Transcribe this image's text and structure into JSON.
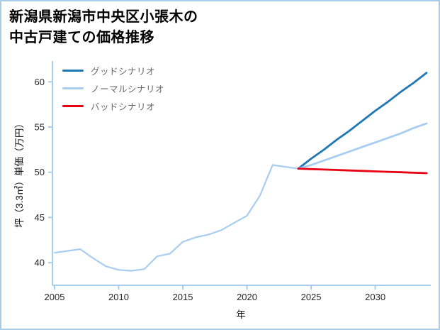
{
  "title": {
    "line1": "新潟県新潟市中央区小張木の",
    "line2": "中古戸建ての価格推移"
  },
  "chart_data": {
    "type": "line",
    "title": "新潟県新潟市中央区小張木の中古戸建ての価格推移",
    "xlabel": "年",
    "ylabel": "坪（3.3㎡）単価（万円）",
    "xlim": [
      2005,
      2034
    ],
    "ylim": [
      37.5,
      62.3
    ],
    "xticks": [
      2005,
      2010,
      2015,
      2020,
      2025,
      2030
    ],
    "yticks": [
      40,
      45,
      50,
      55,
      60
    ],
    "grid": false,
    "legend_position": "upper-left",
    "axis_color": "#a9cce8",
    "tick_label_color": "#262626",
    "legend": [
      {
        "label": "グッドシナリオ",
        "color": "#1f77b4"
      },
      {
        "label": "ノーマルシナリオ",
        "color": "#a8cdf0"
      },
      {
        "label": "バッドシナリオ",
        "color": "#e60012"
      }
    ],
    "series": [
      {
        "key": "history",
        "color": "#a8cdf0",
        "width": 2.2,
        "x": [
          2005,
          2006,
          2007,
          2008,
          2009,
          2010,
          2011,
          2012,
          2013,
          2014,
          2015,
          2016,
          2017,
          2018,
          2019,
          2020,
          2021,
          2022,
          2023,
          2024
        ],
        "y": [
          41.1,
          41.3,
          41.5,
          40.5,
          39.6,
          39.2,
          39.1,
          39.3,
          40.7,
          41.0,
          42.3,
          42.8,
          43.1,
          43.6,
          44.4,
          45.2,
          47.4,
          50.8,
          50.6,
          50.4
        ]
      },
      {
        "key": "good-scenario",
        "color": "#1f77b4",
        "width": 2.8,
        "x": [
          2024,
          2025,
          2026,
          2027,
          2028,
          2029,
          2030,
          2031,
          2032,
          2033,
          2034
        ],
        "y": [
          50.4,
          51.5,
          52.5,
          53.6,
          54.6,
          55.7,
          56.8,
          57.8,
          58.9,
          59.9,
          61.0
        ]
      },
      {
        "key": "normal-scenario",
        "color": "#a8cdf0",
        "width": 2.8,
        "x": [
          2024,
          2025,
          2026,
          2027,
          2028,
          2029,
          2030,
          2031,
          2032,
          2033,
          2034
        ],
        "y": [
          50.4,
          50.8,
          51.3,
          51.8,
          52.3,
          52.8,
          53.3,
          53.8,
          54.3,
          54.9,
          55.4
        ]
      },
      {
        "key": "bad-scenario",
        "color": "#e60012",
        "width": 2.8,
        "x": [
          2024,
          2025,
          2026,
          2027,
          2028,
          2029,
          2030,
          2031,
          2032,
          2033,
          2034
        ],
        "y": [
          50.4,
          50.35,
          50.3,
          50.25,
          50.2,
          50.15,
          50.1,
          50.05,
          50.0,
          49.95,
          49.9
        ]
      }
    ]
  }
}
